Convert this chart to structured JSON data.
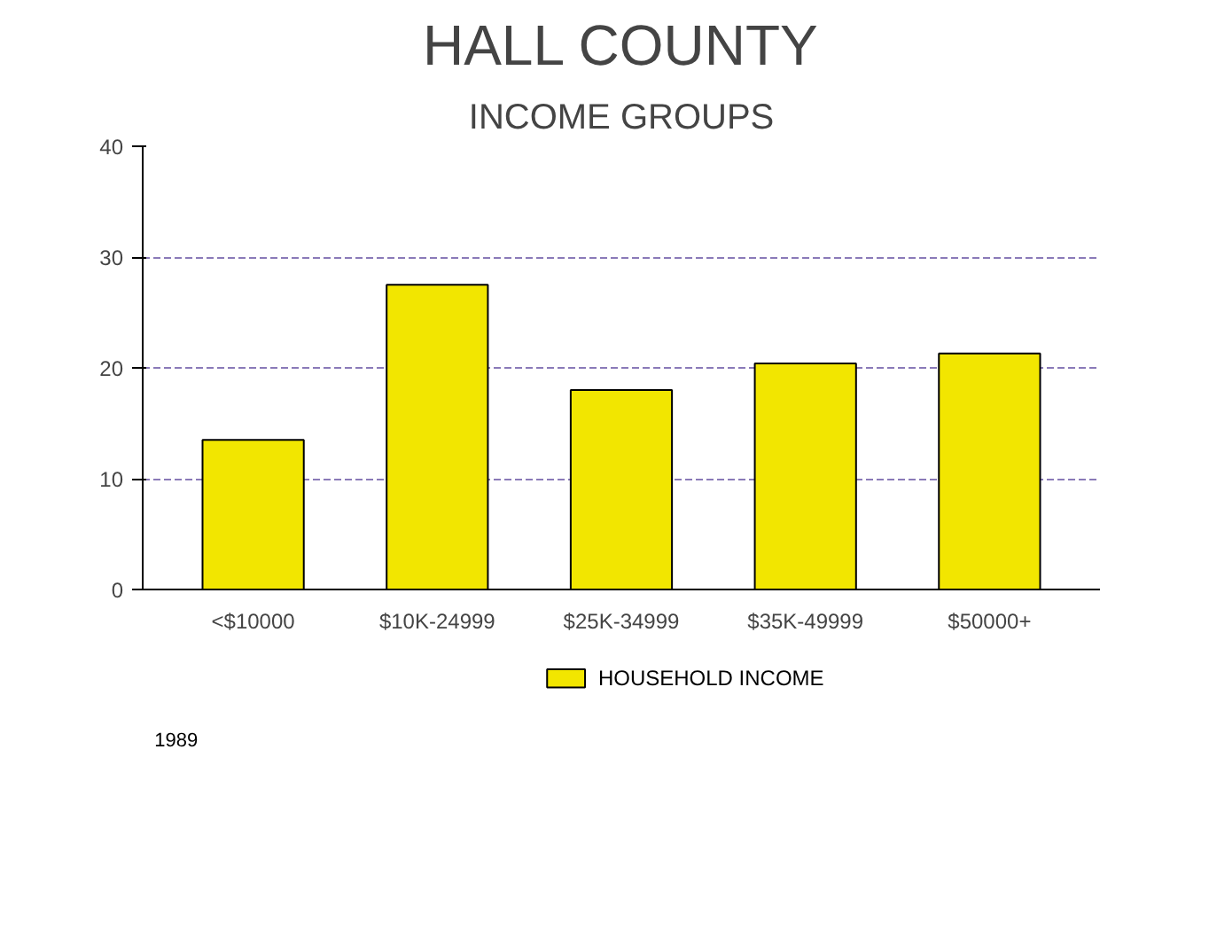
{
  "chart_data": {
    "type": "bar",
    "title": "HALL COUNTY",
    "subtitle": "INCOME GROUPS",
    "categories": [
      "<$10000",
      "$10K-24999",
      "$25K-34999",
      "$35K-49999",
      "$50000+"
    ],
    "series": [
      {
        "name": "HOUSEHOLD INCOME",
        "color": "#f2e600",
        "values": [
          13.5,
          27.5,
          18,
          20.4,
          21.3
        ]
      }
    ],
    "ylim": [
      0,
      40
    ],
    "yticks": [
      0,
      10,
      20,
      30,
      40
    ],
    "grid": "y",
    "legend": "bottom",
    "annotations": [
      "1989"
    ]
  }
}
